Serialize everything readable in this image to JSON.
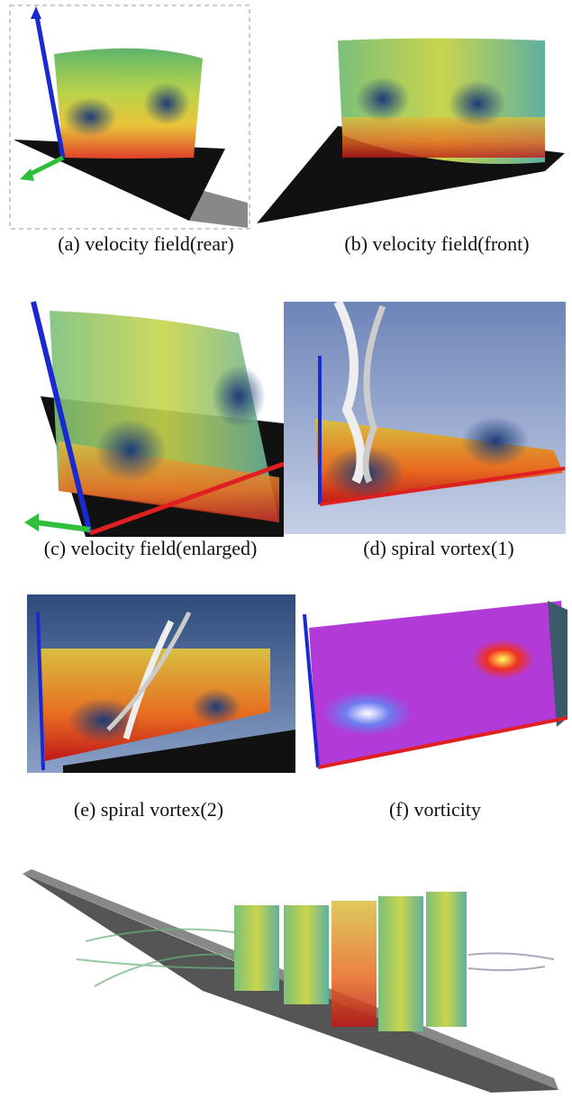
{
  "figures": [
    {
      "caption": "(a)  velocity  field(rear)"
    },
    {
      "caption": "(b)  velocity  field(front)"
    },
    {
      "caption": "(c)  velocity  field(enlarged)"
    },
    {
      "caption": "(d)  spiral  vortex(1)"
    },
    {
      "caption": "(e)  spiral  vortex(2)"
    },
    {
      "caption": "(f)  vorticity"
    }
  ]
}
